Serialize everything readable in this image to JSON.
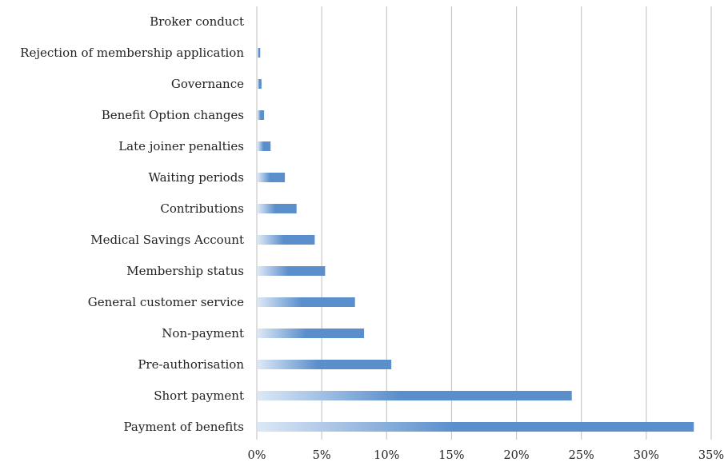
{
  "chart_data": {
    "type": "bar",
    "orientation": "horizontal",
    "categories": [
      "Broker conduct",
      "Rejection of membership application",
      "Governance",
      "Benefit Option changes",
      "Late joiner penalties",
      "Waiting periods",
      "Contributions",
      "Medical Savings Account",
      "Membership status",
      "General customer service",
      "Non-payment",
      "Pre-authorisation",
      "Short payment",
      "Payment of benefits"
    ],
    "values": [
      0.0,
      0.2,
      0.3,
      0.5,
      1.0,
      2.1,
      3.0,
      4.4,
      5.2,
      7.5,
      8.2,
      10.3,
      24.2,
      33.6
    ],
    "xlim": [
      0,
      35
    ],
    "ticks": [
      "0%",
      "5%",
      "10%",
      "15%",
      "20%",
      "25%",
      "30%",
      "35%"
    ],
    "tick_values": [
      0,
      5,
      10,
      15,
      20,
      25,
      30,
      35
    ],
    "grid": "vertical",
    "legend": "none",
    "colors": {
      "bar": "#5b8fcc",
      "bar_light": "#dce8f6",
      "grid": "#c8c8c8"
    }
  }
}
